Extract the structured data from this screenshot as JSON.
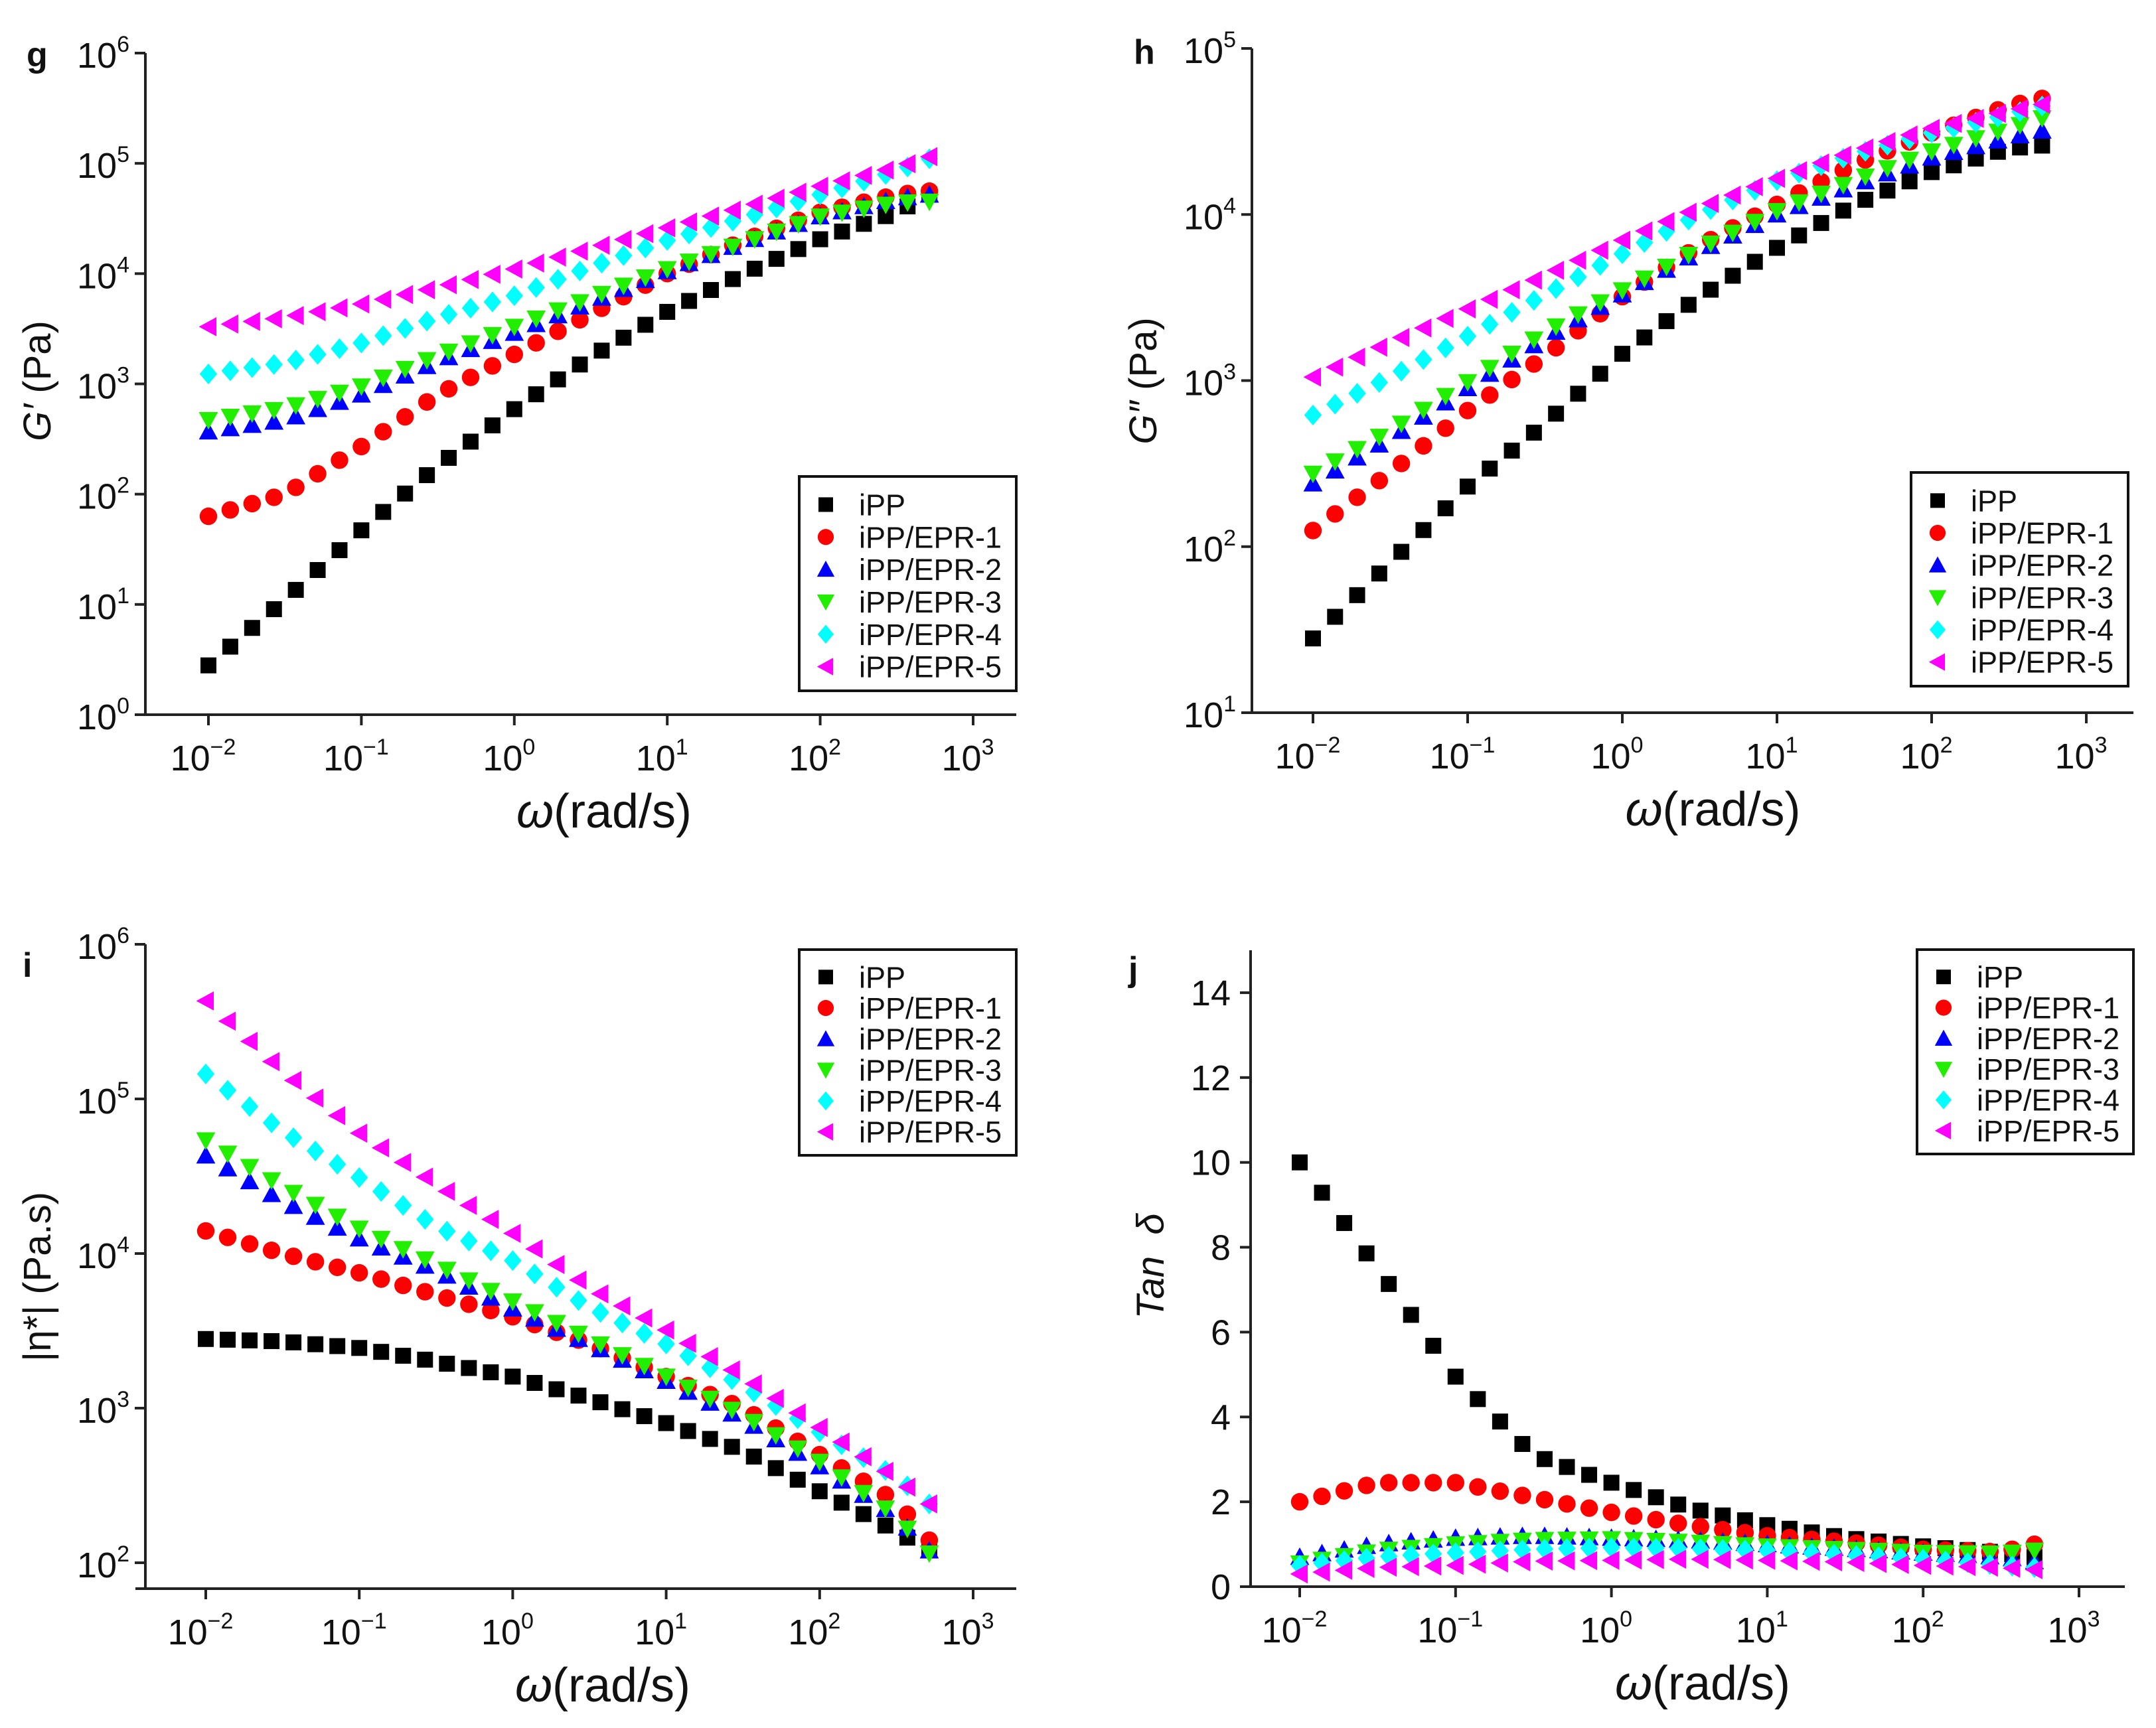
{
  "chart_data": [
    {
      "panel": "g",
      "type": "scatter",
      "title": "",
      "xlabel": {
        "symbol": "ω",
        "unit": "(rad/s)"
      },
      "ylabel": {
        "symbol": "G′",
        "unit": " (Pa)"
      },
      "xscale": "log",
      "yscale": "log",
      "xlim": [
        0.0033,
        1900
      ],
      "ylim": [
        1,
        1000000
      ],
      "xticks": [
        {
          "base": "10",
          "exp": "−2",
          "v": 0.01
        },
        {
          "base": "10",
          "exp": "−1",
          "v": 0.1
        },
        {
          "base": "10",
          "exp": "0",
          "v": 1
        },
        {
          "base": "10",
          "exp": "1",
          "v": 10
        },
        {
          "base": "10",
          "exp": "2",
          "v": 100
        },
        {
          "base": "10",
          "exp": "3",
          "v": 1000
        }
      ],
      "yticks": [
        {
          "base": "10",
          "exp": "0",
          "v": 1
        },
        {
          "base": "10",
          "exp": "1",
          "v": 10
        },
        {
          "base": "10",
          "exp": "2",
          "v": 100
        },
        {
          "base": "10",
          "exp": "3",
          "v": 1000
        },
        {
          "base": "10",
          "exp": "4",
          "v": 10000
        },
        {
          "base": "10",
          "exp": "5",
          "v": 100000
        },
        {
          "base": "10",
          "exp": "6",
          "v": 1000000
        }
      ],
      "legend_position": "bottom-right",
      "x": [
        0.01,
        0.0316,
        0.1,
        0.316,
        1,
        3.16,
        10,
        31.6,
        100,
        316,
        518
      ],
      "points_per_decade": 7,
      "series": [
        {
          "name": "iPP",
          "color": "#000000",
          "marker": "square",
          "values": [
            2.8,
            11,
            47,
            180,
            590,
            1750,
            4500,
            10000,
            20500,
            36000,
            52000
          ]
        },
        {
          "name": "iPP/EPR-1",
          "color": "#ff0000",
          "marker": "circle",
          "values": [
            63,
            100,
            270,
            800,
            1850,
            4300,
            10000,
            20000,
            36000,
            52000,
            56000
          ]
        },
        {
          "name": "iPP/EPR-2",
          "color": "#0000ff",
          "marker": "triangle-up",
          "values": [
            370,
            470,
            800,
            1600,
            2900,
            5500,
            10500,
            19000,
            33000,
            48000,
            52000
          ]
        },
        {
          "name": "iPP/EPR-3",
          "color": "#22ee00",
          "marker": "triangle-down",
          "values": [
            470,
            600,
            950,
            1800,
            3300,
            6000,
            11000,
            19000,
            33000,
            44000,
            45000
          ]
        },
        {
          "name": "iPP/EPR-4",
          "color": "#00ffff",
          "marker": "diamond",
          "values": [
            1230,
            1550,
            2350,
            4000,
            6300,
            11500,
            20000,
            32000,
            52000,
            85000,
            110000
          ]
        },
        {
          "name": "iPP/EPR-5",
          "color": "#ff00ff",
          "marker": "triangle-left",
          "values": [
            3300,
            4000,
            5300,
            7500,
            11000,
            17000,
            26000,
            40000,
            62000,
            92000,
            115000
          ]
        }
      ]
    },
    {
      "panel": "h",
      "type": "scatter",
      "title": "",
      "xlabel": {
        "symbol": "ω",
        "unit": "(rad/s)"
      },
      "ylabel": {
        "symbol": "G″",
        "unit": " (Pa)"
      },
      "xscale": "log",
      "yscale": "log",
      "xlim": [
        0.0033,
        1900
      ],
      "ylim": [
        10,
        100000
      ],
      "xticks": [
        {
          "base": "10",
          "exp": "−2",
          "v": 0.01
        },
        {
          "base": "10",
          "exp": "−1",
          "v": 0.1
        },
        {
          "base": "10",
          "exp": "0",
          "v": 1
        },
        {
          "base": "10",
          "exp": "1",
          "v": 10
        },
        {
          "base": "10",
          "exp": "2",
          "v": 100
        },
        {
          "base": "10",
          "exp": "3",
          "v": 1000
        }
      ],
      "yticks": [
        {
          "base": "10",
          "exp": "1",
          "v": 10
        },
        {
          "base": "10",
          "exp": "2",
          "v": 100
        },
        {
          "base": "10",
          "exp": "3",
          "v": 1000
        },
        {
          "base": "10",
          "exp": "4",
          "v": 10000
        },
        {
          "base": "10",
          "exp": "5",
          "v": 100000
        }
      ],
      "legend_position": "bottom-right",
      "x": [
        0.01,
        0.0316,
        0.1,
        0.316,
        1,
        3.16,
        10,
        31.6,
        100,
        316,
        518
      ],
      "points_per_decade": 7,
      "series": [
        {
          "name": "iPP",
          "color": "#000000",
          "marker": "square",
          "values": [
            28,
            80,
            230,
            550,
            1450,
            3200,
            6300,
            11500,
            18000,
            25000,
            26000
          ]
        },
        {
          "name": "iPP/EPR-1",
          "color": "#ff0000",
          "marker": "circle",
          "values": [
            125,
            280,
            660,
            1400,
            3200,
            6500,
            11500,
            20000,
            31000,
            45000,
            50000
          ]
        },
        {
          "name": "iPP/EPR-2",
          "color": "#0000ff",
          "marker": "triangle-up",
          "values": [
            240,
            450,
            900,
            1800,
            3300,
            6000,
            10000,
            15000,
            22000,
            29000,
            32000
          ]
        },
        {
          "name": "iPP/EPR-3",
          "color": "#22ee00",
          "marker": "triangle-down",
          "values": [
            275,
            500,
            980,
            1950,
            3500,
            6200,
            10500,
            16000,
            24000,
            33000,
            38000
          ]
        },
        {
          "name": "iPP/EPR-4",
          "color": "#00ffff",
          "marker": "diamond",
          "values": [
            620,
            1050,
            1850,
            3300,
            5800,
            10000,
            16000,
            23000,
            31000,
            40000,
            45000
          ]
        },
        {
          "name": "iPP/EPR-5",
          "color": "#ff00ff",
          "marker": "triangle-left",
          "values": [
            1050,
            1700,
            2700,
            4300,
            7000,
            11000,
            16500,
            24000,
            33000,
            42000,
            46000
          ]
        }
      ]
    },
    {
      "panel": "i",
      "type": "scatter",
      "title": "",
      "xlabel": {
        "symbol": "ω",
        "unit": "(rad/s)"
      },
      "ylabel": {
        "symbol": "",
        "unit": "|η*| (Pa.s)"
      },
      "xscale": "log",
      "yscale": "log",
      "xlim": [
        0.0033,
        1900
      ],
      "ylim": [
        68,
        1000000
      ],
      "xticks": [
        {
          "base": "10",
          "exp": "−2",
          "v": 0.01
        },
        {
          "base": "10",
          "exp": "−1",
          "v": 0.1
        },
        {
          "base": "10",
          "exp": "0",
          "v": 1
        },
        {
          "base": "10",
          "exp": "1",
          "v": 10
        },
        {
          "base": "10",
          "exp": "2",
          "v": 100
        },
        {
          "base": "10",
          "exp": "3",
          "v": 1000
        }
      ],
      "yticks": [
        {
          "base": "10",
          "exp": "2",
          "v": 100
        },
        {
          "base": "10",
          "exp": "3",
          "v": 1000
        },
        {
          "base": "10",
          "exp": "4",
          "v": 10000
        },
        {
          "base": "10",
          "exp": "5",
          "v": 100000
        },
        {
          "base": "10",
          "exp": "6",
          "v": 1000000
        }
      ],
      "legend_position": "top-right",
      "x": [
        0.01,
        0.0316,
        0.1,
        0.316,
        1,
        3.16,
        10,
        31.6,
        100,
        316,
        518
      ],
      "points_per_decade": 7,
      "series": [
        {
          "name": "iPP",
          "color": "#000000",
          "marker": "square",
          "values": [
            2800,
            2700,
            2450,
            2000,
            1600,
            1150,
            800,
            530,
            290,
            160,
            120
          ]
        },
        {
          "name": "iPP/EPR-1",
          "color": "#ff0000",
          "marker": "circle",
          "values": [
            14000,
            10000,
            7500,
            5400,
            3900,
            2600,
            1600,
            1000,
            500,
            250,
            140
          ]
        },
        {
          "name": "iPP/EPR-2",
          "color": "#0000ff",
          "marker": "triangle-up",
          "values": [
            43000,
            22000,
            12500,
            7800,
            4400,
            2600,
            1500,
            850,
            420,
            200,
            120
          ]
        },
        {
          "name": "iPP/EPR-3",
          "color": "#22ee00",
          "marker": "triangle-down",
          "values": [
            54000,
            27000,
            14500,
            8500,
            4900,
            2800,
            1600,
            900,
            450,
            200,
            115
          ]
        },
        {
          "name": "iPP/EPR-4",
          "color": "#00ffff",
          "marker": "diamond",
          "values": [
            145000,
            62000,
            31000,
            15000,
            9000,
            4500,
            2600,
            1400,
            700,
            360,
            240
          ]
        },
        {
          "name": "iPP/EPR-5",
          "color": "#ff00ff",
          "marker": "triangle-left",
          "values": [
            430000,
            150000,
            60000,
            28000,
            13500,
            6000,
            3200,
            1600,
            750,
            350,
            240
          ]
        }
      ]
    },
    {
      "panel": "j",
      "type": "scatter",
      "title": "",
      "xlabel": {
        "symbol": "ω",
        "unit": "(rad/s)"
      },
      "ylabel": {
        "symbol": "Tan  δ",
        "unit": ""
      },
      "xscale": "log",
      "yscale": "linear",
      "xlim": [
        0.0033,
        1900
      ],
      "ylim": [
        0,
        15
      ],
      "xticks": [
        {
          "base": "10",
          "exp": "−2",
          "v": 0.01
        },
        {
          "base": "10",
          "exp": "−1",
          "v": 0.1
        },
        {
          "base": "10",
          "exp": "0",
          "v": 1
        },
        {
          "base": "10",
          "exp": "1",
          "v": 10
        },
        {
          "base": "10",
          "exp": "2",
          "v": 100
        },
        {
          "base": "10",
          "exp": "3",
          "v": 1000
        }
      ],
      "yticks": [
        {
          "base": "0",
          "exp": "",
          "v": 0
        },
        {
          "base": "2",
          "exp": "",
          "v": 2
        },
        {
          "base": "4",
          "exp": "",
          "v": 4
        },
        {
          "base": "6",
          "exp": "",
          "v": 6
        },
        {
          "base": "8",
          "exp": "",
          "v": 8
        },
        {
          "base": "10",
          "exp": "",
          "v": 10
        },
        {
          "base": "12",
          "exp": "",
          "v": 12
        },
        {
          "base": "14",
          "exp": "",
          "v": 14
        }
      ],
      "legend_position": "top-right",
      "x": [
        0.01,
        0.0316,
        0.1,
        0.316,
        1,
        3.16,
        10,
        31.6,
        100,
        316,
        518
      ],
      "points_per_decade": 7,
      "series": [
        {
          "name": "iPP",
          "color": "#000000",
          "marker": "square",
          "values": [
            10,
            7.5,
            4.95,
            3.1,
            2.45,
            1.85,
            1.45,
            1.15,
            0.95,
            0.8,
            0.7
          ]
        },
        {
          "name": "iPP/EPR-1",
          "color": "#ff0000",
          "marker": "circle",
          "values": [
            2.0,
            2.45,
            2.45,
            2.1,
            1.75,
            1.45,
            1.2,
            1.05,
            0.88,
            0.82,
            1.0
          ]
        },
        {
          "name": "iPP/EPR-2",
          "color": "#0000ff",
          "marker": "triangle-up",
          "values": [
            0.7,
            1.0,
            1.15,
            1.2,
            1.15,
            1.1,
            1.0,
            0.9,
            0.8,
            0.7,
            0.6
          ]
        },
        {
          "name": "iPP/EPR-3",
          "color": "#22ee00",
          "marker": "triangle-down",
          "values": [
            0.55,
            0.85,
            1.0,
            1.1,
            1.12,
            1.05,
            0.95,
            0.88,
            0.8,
            0.78,
            0.85
          ]
        },
        {
          "name": "iPP/EPR-4",
          "color": "#00ffff",
          "marker": "diamond",
          "values": [
            0.5,
            0.7,
            0.8,
            0.88,
            0.92,
            0.9,
            0.85,
            0.75,
            0.65,
            0.5,
            0.45
          ]
        },
        {
          "name": "iPP/EPR-5",
          "color": "#ff00ff",
          "marker": "triangle-left",
          "values": [
            0.3,
            0.45,
            0.5,
            0.6,
            0.62,
            0.65,
            0.62,
            0.58,
            0.5,
            0.45,
            0.4
          ]
        }
      ]
    }
  ]
}
